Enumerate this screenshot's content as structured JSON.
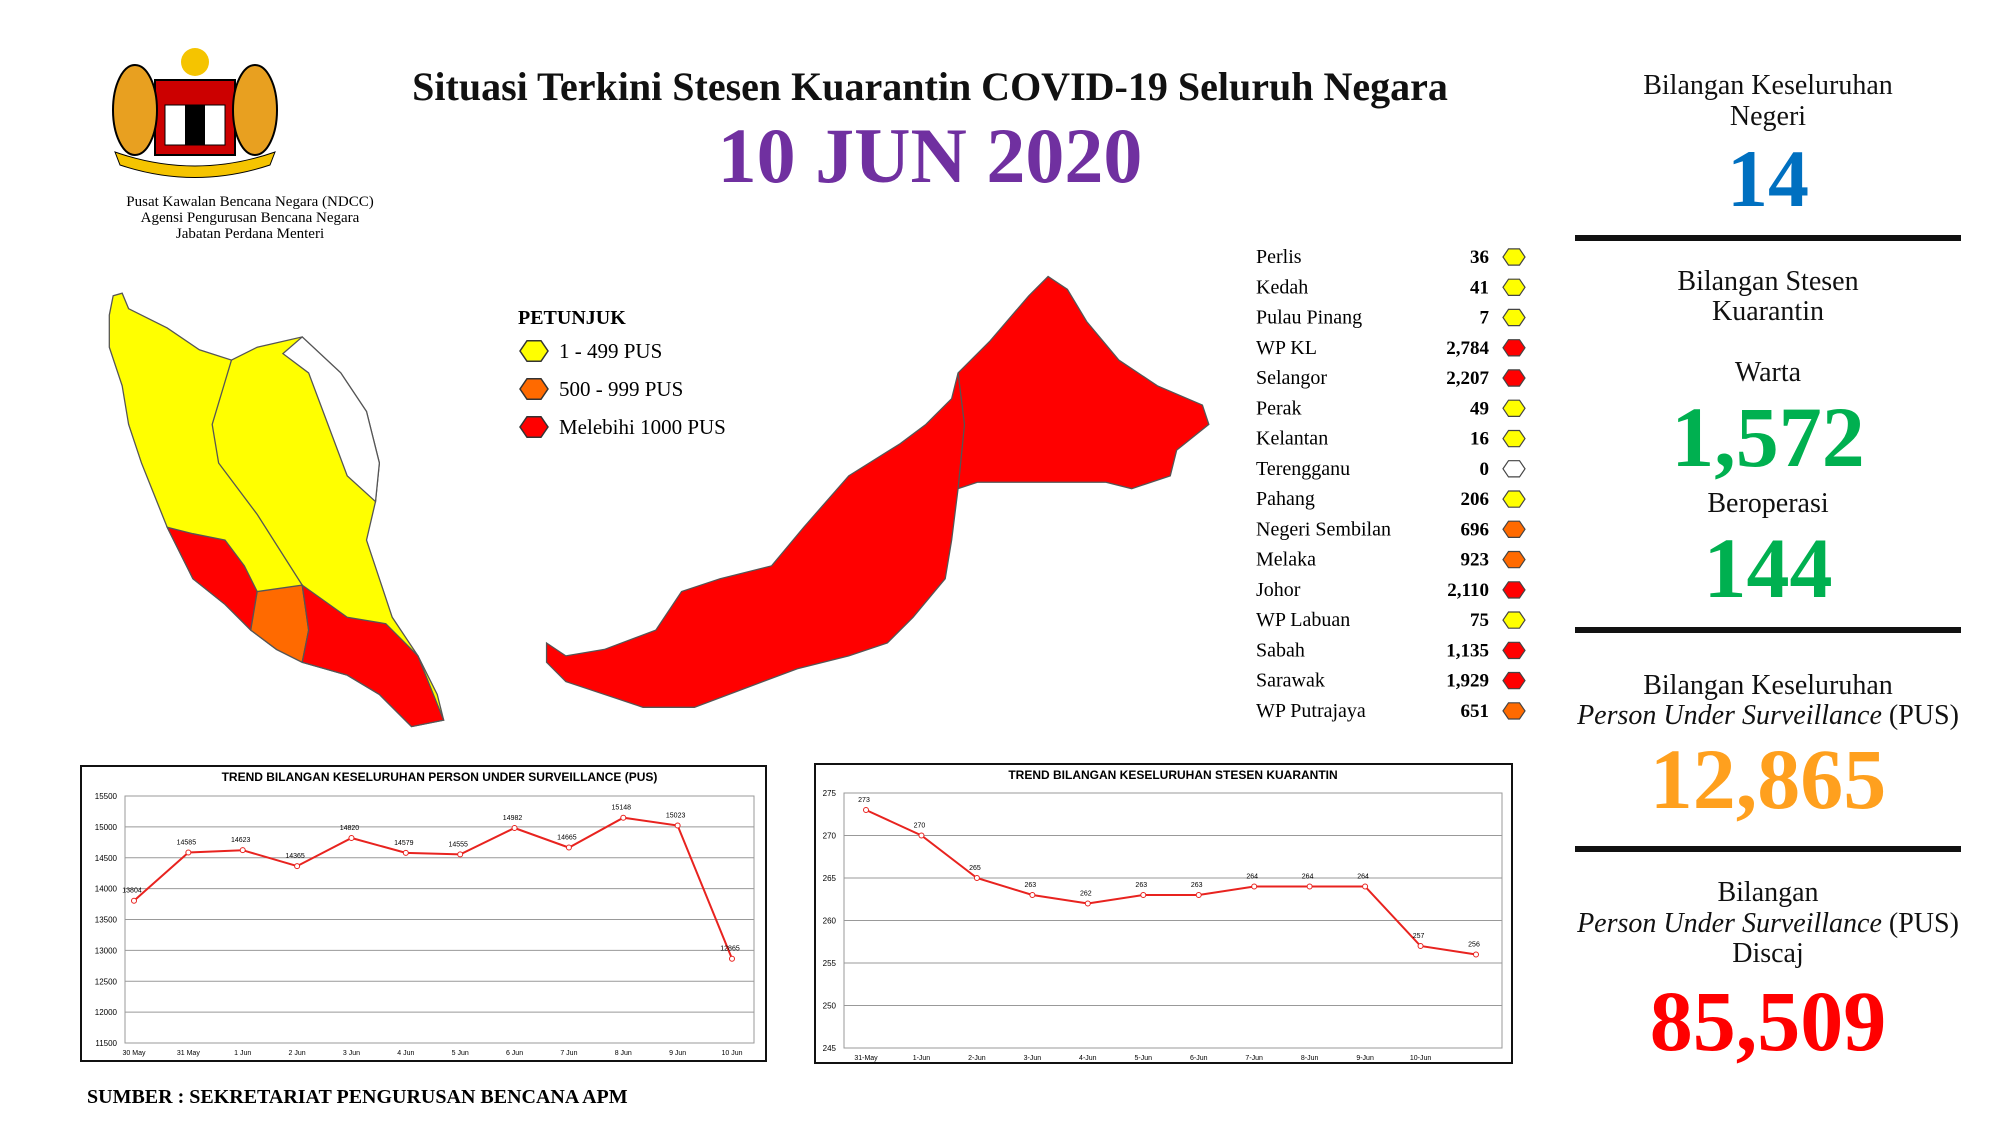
{
  "header": {
    "title": "Situasi Terkini Stesen Kuarantin COVID-19 Seluruh Negara",
    "date": "10 JUN 2020",
    "agency": [
      "Pusat Kawalan Bencana Negara (NDCC)",
      "Agensi Pengurusan Bencana Negara",
      "Jabatan Perdana Menteri"
    ]
  },
  "legend": {
    "title": "PETUNJUK",
    "items": [
      {
        "label": "1 - 499 PUS",
        "color": "#ffff00"
      },
      {
        "label": "500 - 999 PUS",
        "color": "#ff6a00"
      },
      {
        "label": "Melebihi 1000 PUS",
        "color": "#ff0000"
      }
    ]
  },
  "states": [
    {
      "name": "Perlis",
      "value": "36",
      "color": "#ffff00"
    },
    {
      "name": "Kedah",
      "value": "41",
      "color": "#ffff00"
    },
    {
      "name": "Pulau Pinang",
      "value": "7",
      "color": "#ffff00"
    },
    {
      "name": "WP KL",
      "value": "2,784",
      "color": "#ff0000"
    },
    {
      "name": "Selangor",
      "value": "2,207",
      "color": "#ff0000"
    },
    {
      "name": "Perak",
      "value": "49",
      "color": "#ffff00"
    },
    {
      "name": "Kelantan",
      "value": "16",
      "color": "#ffff00"
    },
    {
      "name": "Terengganu",
      "value": "0",
      "color": "#ffffff"
    },
    {
      "name": "Pahang",
      "value": "206",
      "color": "#ffff00"
    },
    {
      "name": "Negeri Sembilan",
      "value": "696",
      "color": "#ff6a00"
    },
    {
      "name": "Melaka",
      "value": "923",
      "color": "#ff6a00"
    },
    {
      "name": "Johor",
      "value": "2,110",
      "color": "#ff0000"
    },
    {
      "name": "WP Labuan",
      "value": "75",
      "color": "#ffff00"
    },
    {
      "name": "Sabah",
      "value": "1,135",
      "color": "#ff0000"
    },
    {
      "name": "Sarawak",
      "value": "1,929",
      "color": "#ff0000"
    },
    {
      "name": "WP Putrajaya",
      "value": "651",
      "color": "#ff6a00"
    }
  ],
  "summary": {
    "states": {
      "label": [
        "Bilangan Keseluruhan",
        "Negeri"
      ],
      "value": "14"
    },
    "stations": {
      "label": [
        "Bilangan Stesen",
        "Kuarantin"
      ],
      "gazetted": {
        "label": "Warta",
        "value": "1,572"
      },
      "operating": {
        "label": "Beroperasi",
        "value": "144"
      }
    },
    "pus_total": {
      "label": "Bilangan Keseluruhan",
      "term": "Person Under Surveillance",
      "abbr": "(PUS)",
      "value": "12,865"
    },
    "pus_discharged": {
      "label": "Bilangan",
      "term": "Person Under Surveillance",
      "abbr": "(PUS)",
      "suffix": "Discaj",
      "value": "85,509"
    }
  },
  "source": "SUMBER : SEKRETARIAT PENGURUSAN BENCANA APM",
  "chart_data": [
    {
      "type": "line",
      "title": "TREND BILANGAN KESELURUHAN PERSON UNDER SURVEILLANCE (PUS)",
      "categories": [
        "30 May",
        "31 May",
        "1 Jun",
        "2 Jun",
        "3 Jun",
        "4 Jun",
        "5 Jun",
        "6 Jun",
        "7 Jun",
        "8 Jun",
        "9 Jun",
        "10 Jun"
      ],
      "values": [
        13804,
        14585,
        14623,
        14365,
        14820,
        14579,
        14555,
        14982,
        14665,
        15148,
        15023,
        12865
      ],
      "color": "#e8231f",
      "ylim": [
        11500,
        15500
      ],
      "yticks": [
        11500,
        12000,
        12500,
        13000,
        13500,
        14000,
        14500,
        15000,
        15500
      ],
      "grid": true
    },
    {
      "type": "line",
      "title": "TREND BILANGAN KESELURUHAN STESEN KUARANTIN",
      "categories": [
        "31-May",
        "1-Jun",
        "2-Jun",
        "3-Jun",
        "4-Jun",
        "5-Jun",
        "6-Jun",
        "7-Jun",
        "8-Jun",
        "9-Jun",
        "10-Jun",
        null
      ],
      "values": [
        273,
        270,
        265,
        263,
        262,
        263,
        263,
        264,
        264,
        264,
        257,
        256
      ],
      "color": "#e8231f",
      "ylim": [
        245,
        275
      ],
      "yticks": [
        245,
        250,
        255,
        260,
        265,
        270,
        275
      ],
      "grid": true
    }
  ]
}
